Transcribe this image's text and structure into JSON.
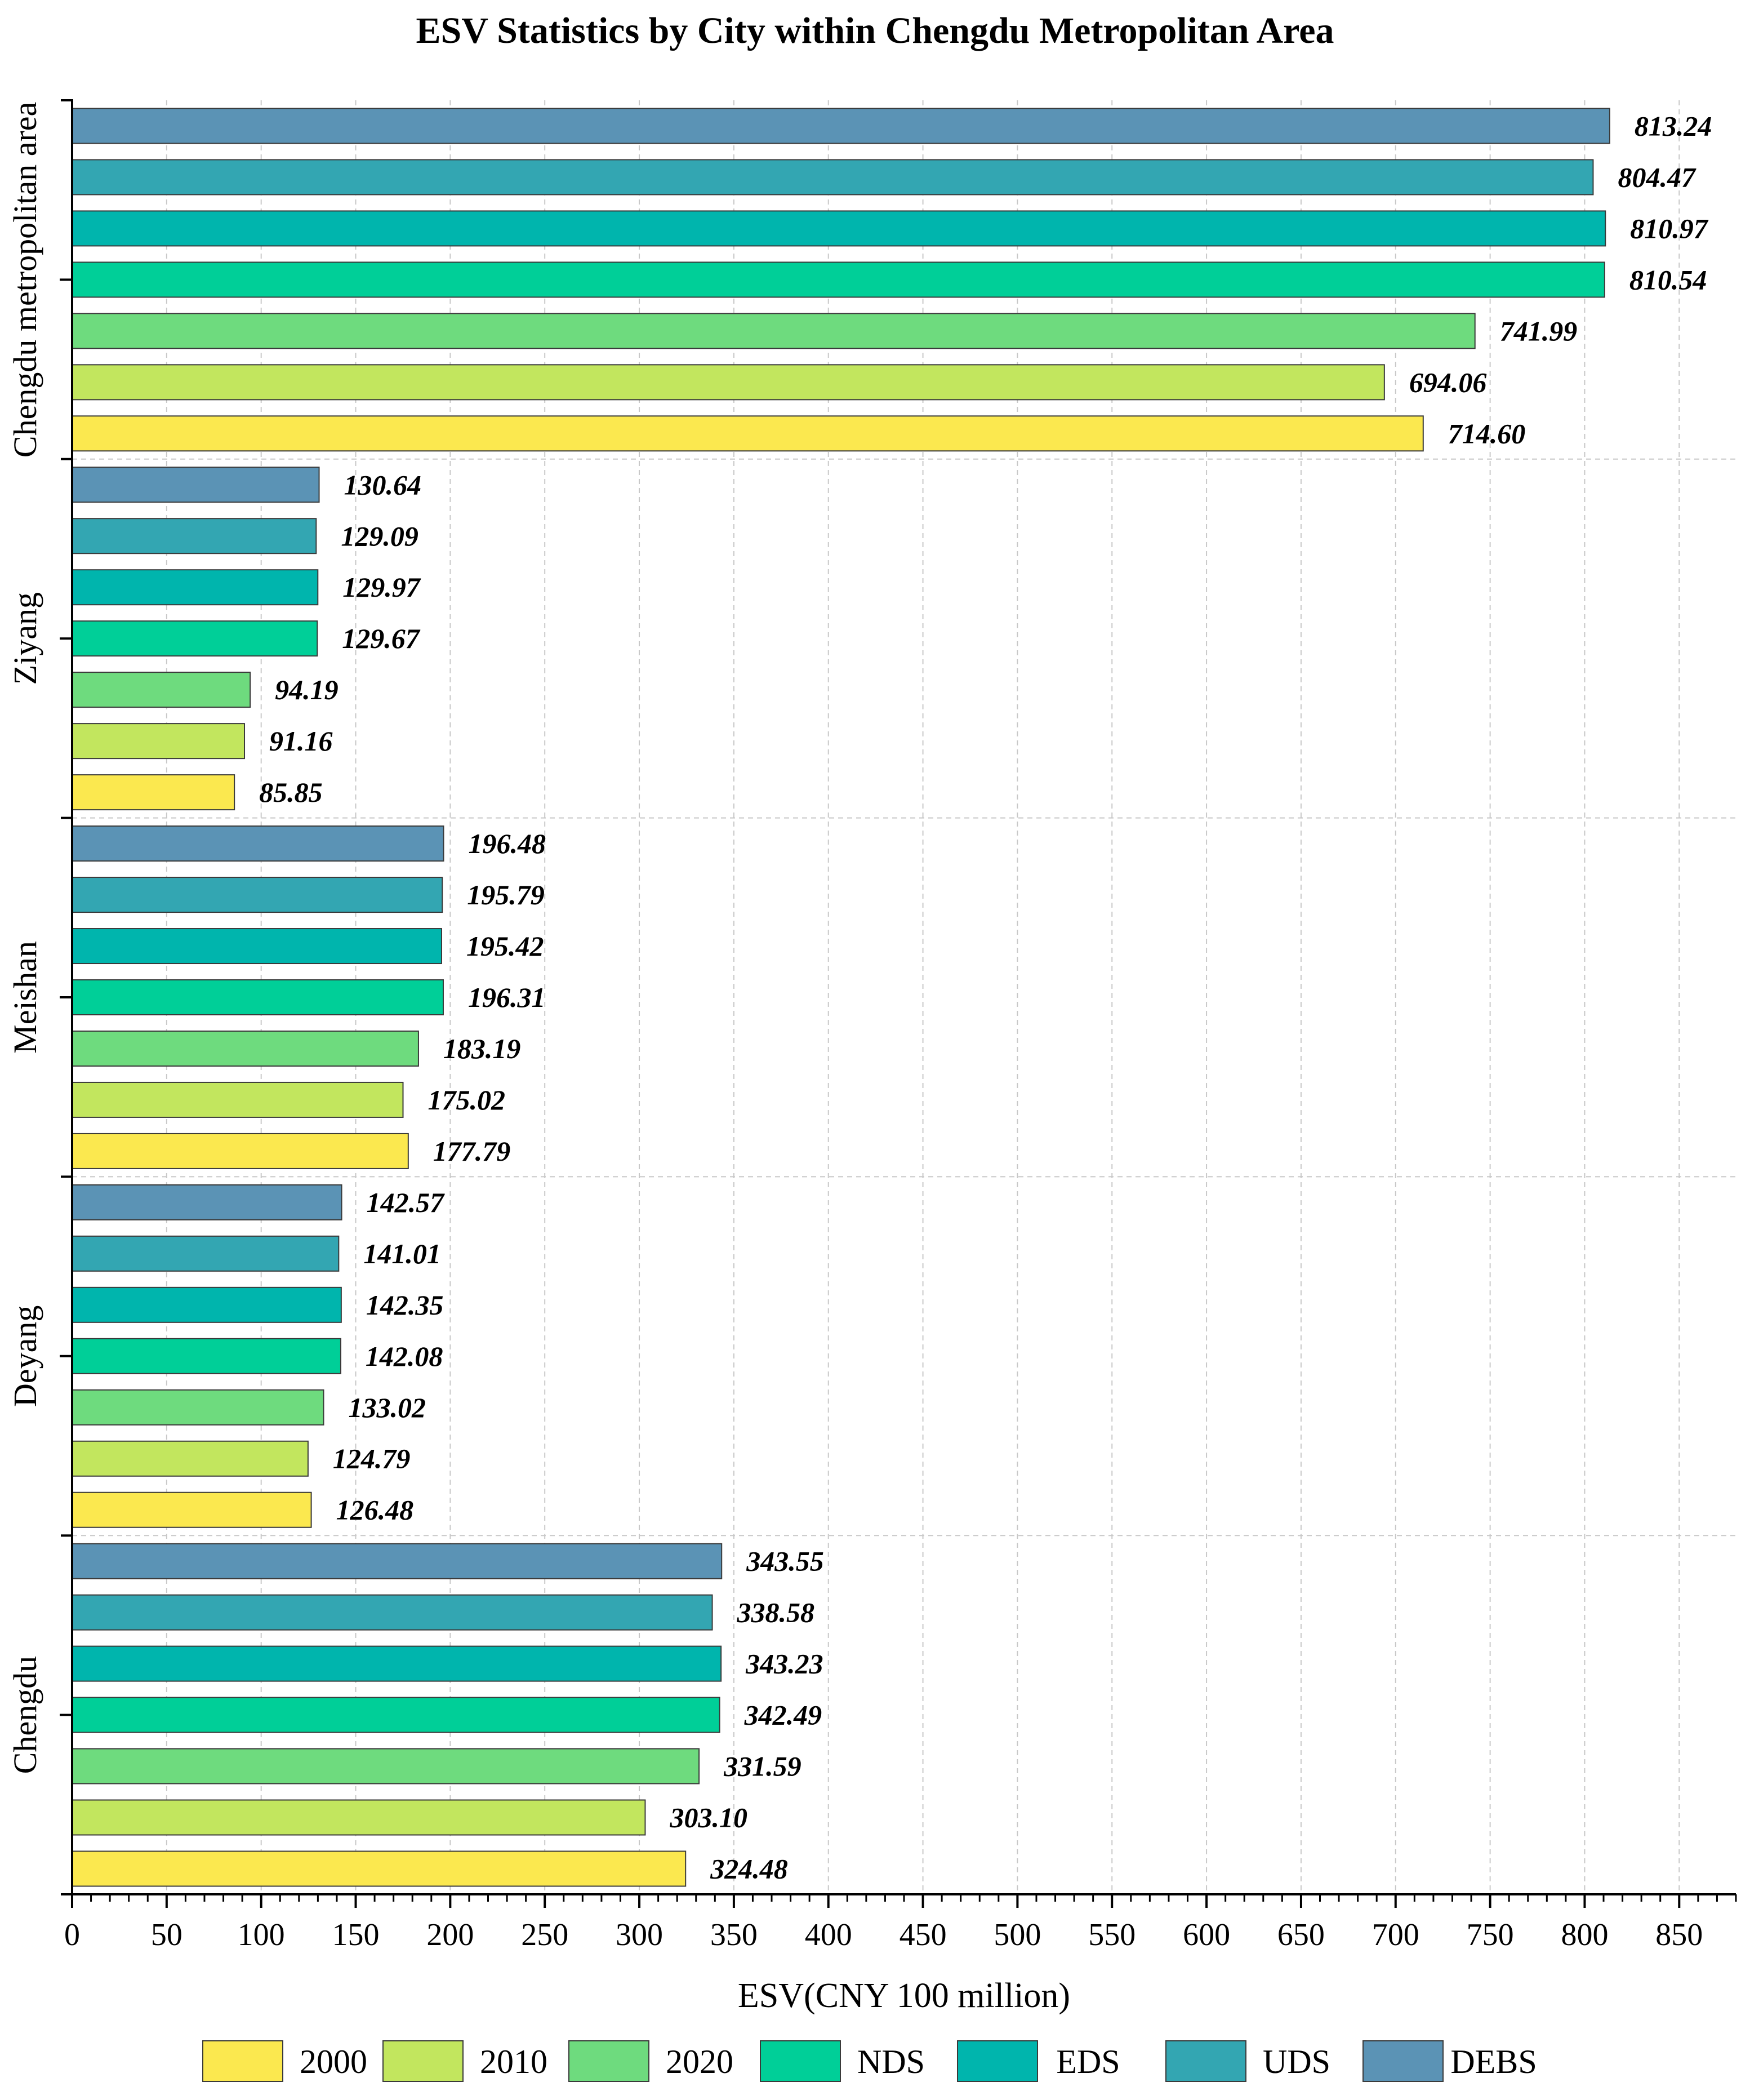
{
  "chart_data": {
    "type": "bar",
    "orientation": "horizontal",
    "title": "ESV Statistics by City within Chengdu Metropolitan Area",
    "xlabel": "ESV(CNY 100 million)",
    "ylabel": "",
    "xlim": [
      0,
      880
    ],
    "xticks": [
      0,
      50,
      100,
      150,
      200,
      250,
      300,
      350,
      400,
      450,
      500,
      550,
      600,
      650,
      700,
      750,
      800,
      850
    ],
    "grid": "dashed",
    "legend_position": "bottom",
    "categories": [
      "Chengdu metropolitan area",
      "Ziyang",
      "Meishan",
      "Deyang",
      "Chengdu"
    ],
    "series": [
      {
        "name": "DEBS",
        "color": "#5b93b5",
        "values": [
          813.24,
          130.64,
          196.48,
          142.57,
          343.55
        ],
        "labels": [
          "813.24",
          "130.64",
          "196.48",
          "142.57",
          "343.55"
        ]
      },
      {
        "name": "UDS",
        "color": "#33a6b2",
        "values": [
          804.47,
          129.09,
          195.79,
          141.01,
          338.58
        ],
        "labels": [
          "804.47",
          "129.09",
          "195.79",
          "141.01",
          "338.58"
        ]
      },
      {
        "name": "EDS",
        "color": "#00b5ad",
        "values": [
          810.97,
          129.97,
          195.42,
          142.35,
          343.23
        ],
        "labels": [
          "810.97",
          "129.97",
          "195.42",
          "142.35",
          "343.23"
        ]
      },
      {
        "name": "NDS",
        "color": "#00cf98",
        "values": [
          810.54,
          129.67,
          196.31,
          142.08,
          342.49
        ],
        "labels": [
          "810.54",
          "129.67",
          "196.31",
          "142.08",
          "342.49"
        ]
      },
      {
        "name": "2020",
        "color": "#6edb7e",
        "values": [
          741.99,
          94.19,
          183.19,
          133.02,
          331.59
        ],
        "labels": [
          "741.99",
          "94.19",
          "183.19",
          "133.02",
          "331.59"
        ]
      },
      {
        "name": "2010",
        "color": "#c2e65e",
        "values": [
          694.06,
          91.16,
          175.02,
          124.79,
          303.1
        ],
        "labels": [
          "694.06",
          "91.16",
          "175.02",
          "124.79",
          "303.10"
        ]
      },
      {
        "name": "2000",
        "color": "#fbe84f",
        "values": [
          714.6,
          85.85,
          177.79,
          126.48,
          324.48
        ],
        "labels": [
          "714.60",
          "85.85",
          "177.79",
          "126.48",
          "324.48"
        ]
      }
    ],
    "legend_order": [
      "2000",
      "2010",
      "2020",
      "NDS",
      "EDS",
      "UDS",
      "DEBS"
    ]
  }
}
